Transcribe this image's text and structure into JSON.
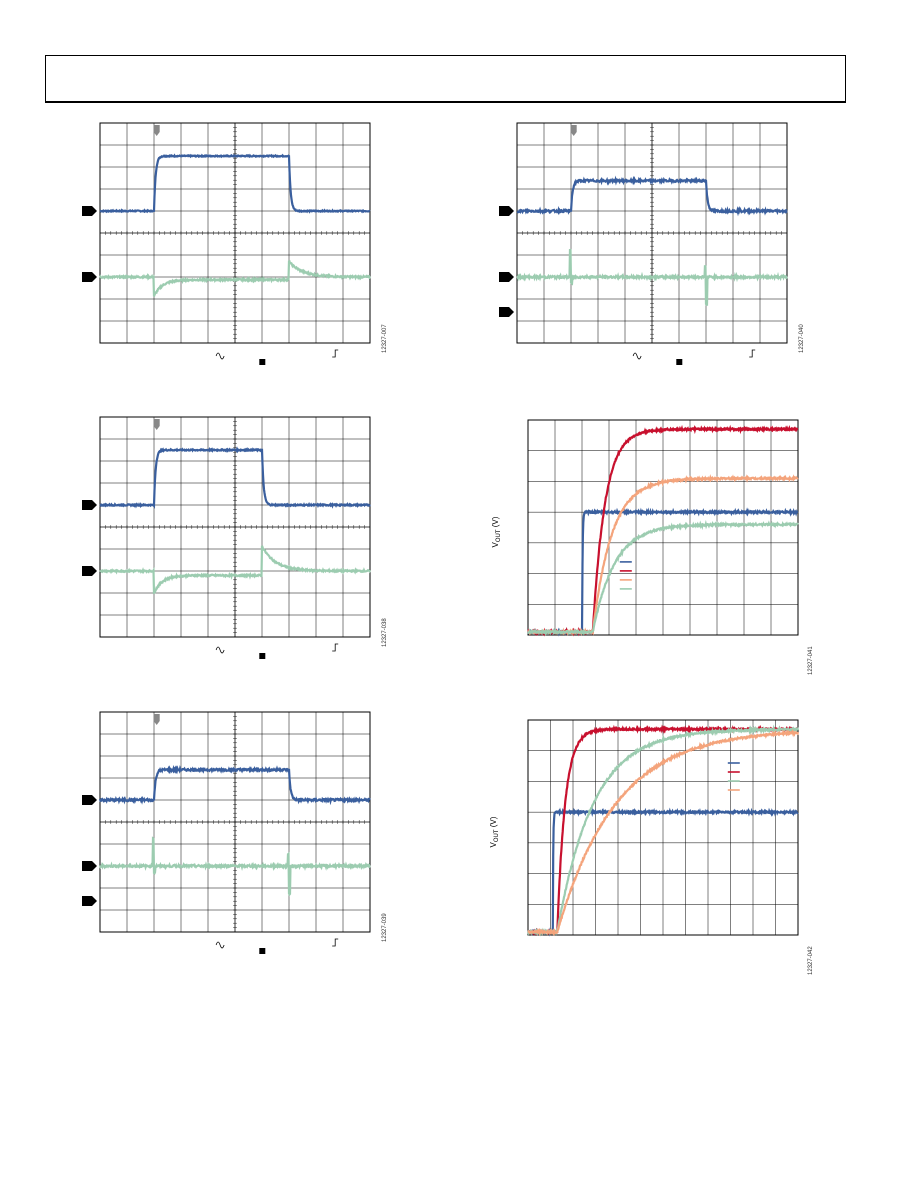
{
  "page": {
    "header_box": true
  },
  "figures": [
    {
      "id": "12327-007",
      "kind": "scope",
      "colors": {
        "ch1": "#3a5f9e",
        "ch2": "#9cccb0"
      },
      "ch1": {
        "base": 0.0,
        "high": 1.0,
        "rise_at": 0.2,
        "fall_at": 0.7,
        "noise": 0.01
      },
      "ch2": {
        "base": 0.0,
        "dip": -0.35,
        "dip_settle": -0.05,
        "spike": 0.28,
        "dip_at": 0.2,
        "spike_at": 0.7,
        "spike_settle": 0.0,
        "noise": 0.015
      }
    },
    {
      "id": "12327-040",
      "kind": "scope",
      "colors": {
        "ch1": "#3a5f9e",
        "ch2": "#9cccb0"
      },
      "ch1": {
        "base": 0.0,
        "high": 0.55,
        "rise_at": 0.2,
        "fall_at": 0.7,
        "noise": 0.02
      },
      "ch2": {
        "base": 0.0,
        "dip": -0.12,
        "dip_settle": 0.0,
        "spike": 0.5,
        "dip_at": 0.2,
        "spike_at": 0.7,
        "spike_settle": 0.0,
        "noise": 0.02,
        "glitch": true
      }
    },
    {
      "id": "12327-038",
      "kind": "scope",
      "colors": {
        "ch1": "#3a5f9e",
        "ch2": "#9cccb0"
      },
      "ch1": {
        "base": 0.0,
        "high": 1.0,
        "rise_at": 0.2,
        "fall_at": 0.6,
        "noise": 0.012
      },
      "ch2": {
        "base": 0.0,
        "dip": -0.4,
        "dip_settle": -0.08,
        "spike": 0.45,
        "dip_at": 0.2,
        "spike_at": 0.6,
        "spike_settle": 0.0,
        "noise": 0.015
      }
    },
    {
      "id": "12327-041",
      "kind": "chart",
      "ylabel": "V",
      "ylabel_sub": "OUT",
      "ylabel_unit": " (V)"
    },
    {
      "id": "12327-039",
      "kind": "scope",
      "colors": {
        "ch1": "#3a5f9e",
        "ch2": "#9cccb0"
      },
      "ch1": {
        "base": 0.0,
        "high": 0.55,
        "rise_at": 0.2,
        "fall_at": 0.7,
        "noise": 0.02
      },
      "ch2": {
        "base": 0.0,
        "dip": -0.12,
        "dip_settle": 0.0,
        "spike": 0.5,
        "dip_at": 0.2,
        "spike_at": 0.7,
        "spike_settle": 0.0,
        "noise": 0.02,
        "glitch": true
      }
    },
    {
      "id": "12327-042",
      "kind": "chart",
      "ylabel": "V",
      "ylabel_sub": "OUT",
      "ylabel_unit": " (V)"
    }
  ],
  "chart_data": [
    {
      "type": "line",
      "figure": "12327-041",
      "xlim": [
        0,
        10
      ],
      "ylim": [
        0,
        7
      ],
      "grid": true,
      "legend": "center",
      "series": [
        {
          "color": "#3a5f9e",
          "start": 2.0,
          "tau": 0.02,
          "final": 4.0
        },
        {
          "color": "#c8102e",
          "start": 2.4,
          "tau": 0.45,
          "final": 6.7
        },
        {
          "color": "#f4a47c",
          "start": 2.4,
          "tau": 0.7,
          "final": 5.1
        },
        {
          "color": "#9cccb0",
          "start": 2.4,
          "tau": 0.8,
          "final": 3.6
        }
      ]
    },
    {
      "type": "line",
      "figure": "12327-042",
      "xlim": [
        0,
        12
      ],
      "ylim": [
        0,
        7
      ],
      "grid": true,
      "legend": "top-right",
      "series": [
        {
          "color": "#3a5f9e",
          "start": 1.1,
          "tau": 0.02,
          "final": 4.0
        },
        {
          "color": "#c8102e",
          "start": 1.3,
          "tau": 0.35,
          "final": 6.7
        },
        {
          "color": "#9cccb0",
          "start": 1.3,
          "tau": 1.6,
          "final": 6.7
        },
        {
          "color": "#f4a47c",
          "start": 1.3,
          "tau": 2.6,
          "final": 6.7
        }
      ]
    }
  ]
}
